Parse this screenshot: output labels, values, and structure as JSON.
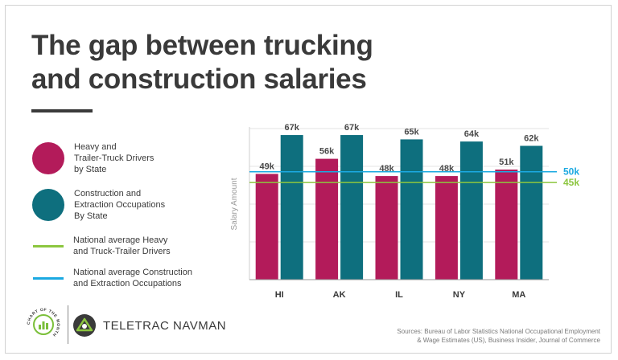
{
  "title_line1": "The gap between trucking",
  "title_line2": "and construction salaries",
  "legend": [
    {
      "label": "Heavy and\nTrailer-Truck Drivers\nby State",
      "color": "#b31b5a",
      "kind": "circle"
    },
    {
      "label": "Construction and\nExtraction Occupations\nBy State",
      "color": "#0e6f7e",
      "kind": "circle"
    },
    {
      "label": "National average Heavy\nand Truck-Trailer Drivers",
      "color": "#8cc63f",
      "kind": "line"
    },
    {
      "label": "National average Construction\nand Extraction Occupations",
      "color": "#1ba9e1",
      "kind": "line"
    }
  ],
  "chart_data": {
    "type": "bar",
    "categories": [
      "HI",
      "AK",
      "IL",
      "NY",
      "MA"
    ],
    "series": [
      {
        "name": "Heavy and Trailer-Truck Drivers by State",
        "values": [
          49,
          56,
          48,
          48,
          51
        ],
        "labels": [
          "49k",
          "56k",
          "48k",
          "48k",
          "51k"
        ],
        "color": "#b31b5a"
      },
      {
        "name": "Construction and Extraction Occupations By State",
        "values": [
          67,
          67,
          65,
          64,
          62
        ],
        "labels": [
          "67k",
          "67k",
          "65k",
          "64k",
          "62k"
        ],
        "color": "#0e6f7e"
      }
    ],
    "reference_lines": [
      {
        "value": 50,
        "label": "50k",
        "color": "#1ba9e1"
      },
      {
        "value": 45,
        "label": "45k",
        "color": "#8cc63f"
      }
    ],
    "ylabel": "Salary Amount",
    "ylim": [
      0,
      70
    ],
    "yticks": [
      0,
      17.5,
      35,
      52.5,
      70
    ],
    "grid": true
  },
  "brand": {
    "name": "TELETRAC NAVMAN",
    "badge_text": "CHART OF THE MONTH"
  },
  "sources": "Sources: Bureau of Labor Statistics National Occupational Employment\n& Wage Estimates (US), Business Insider, Journal of Commerce"
}
